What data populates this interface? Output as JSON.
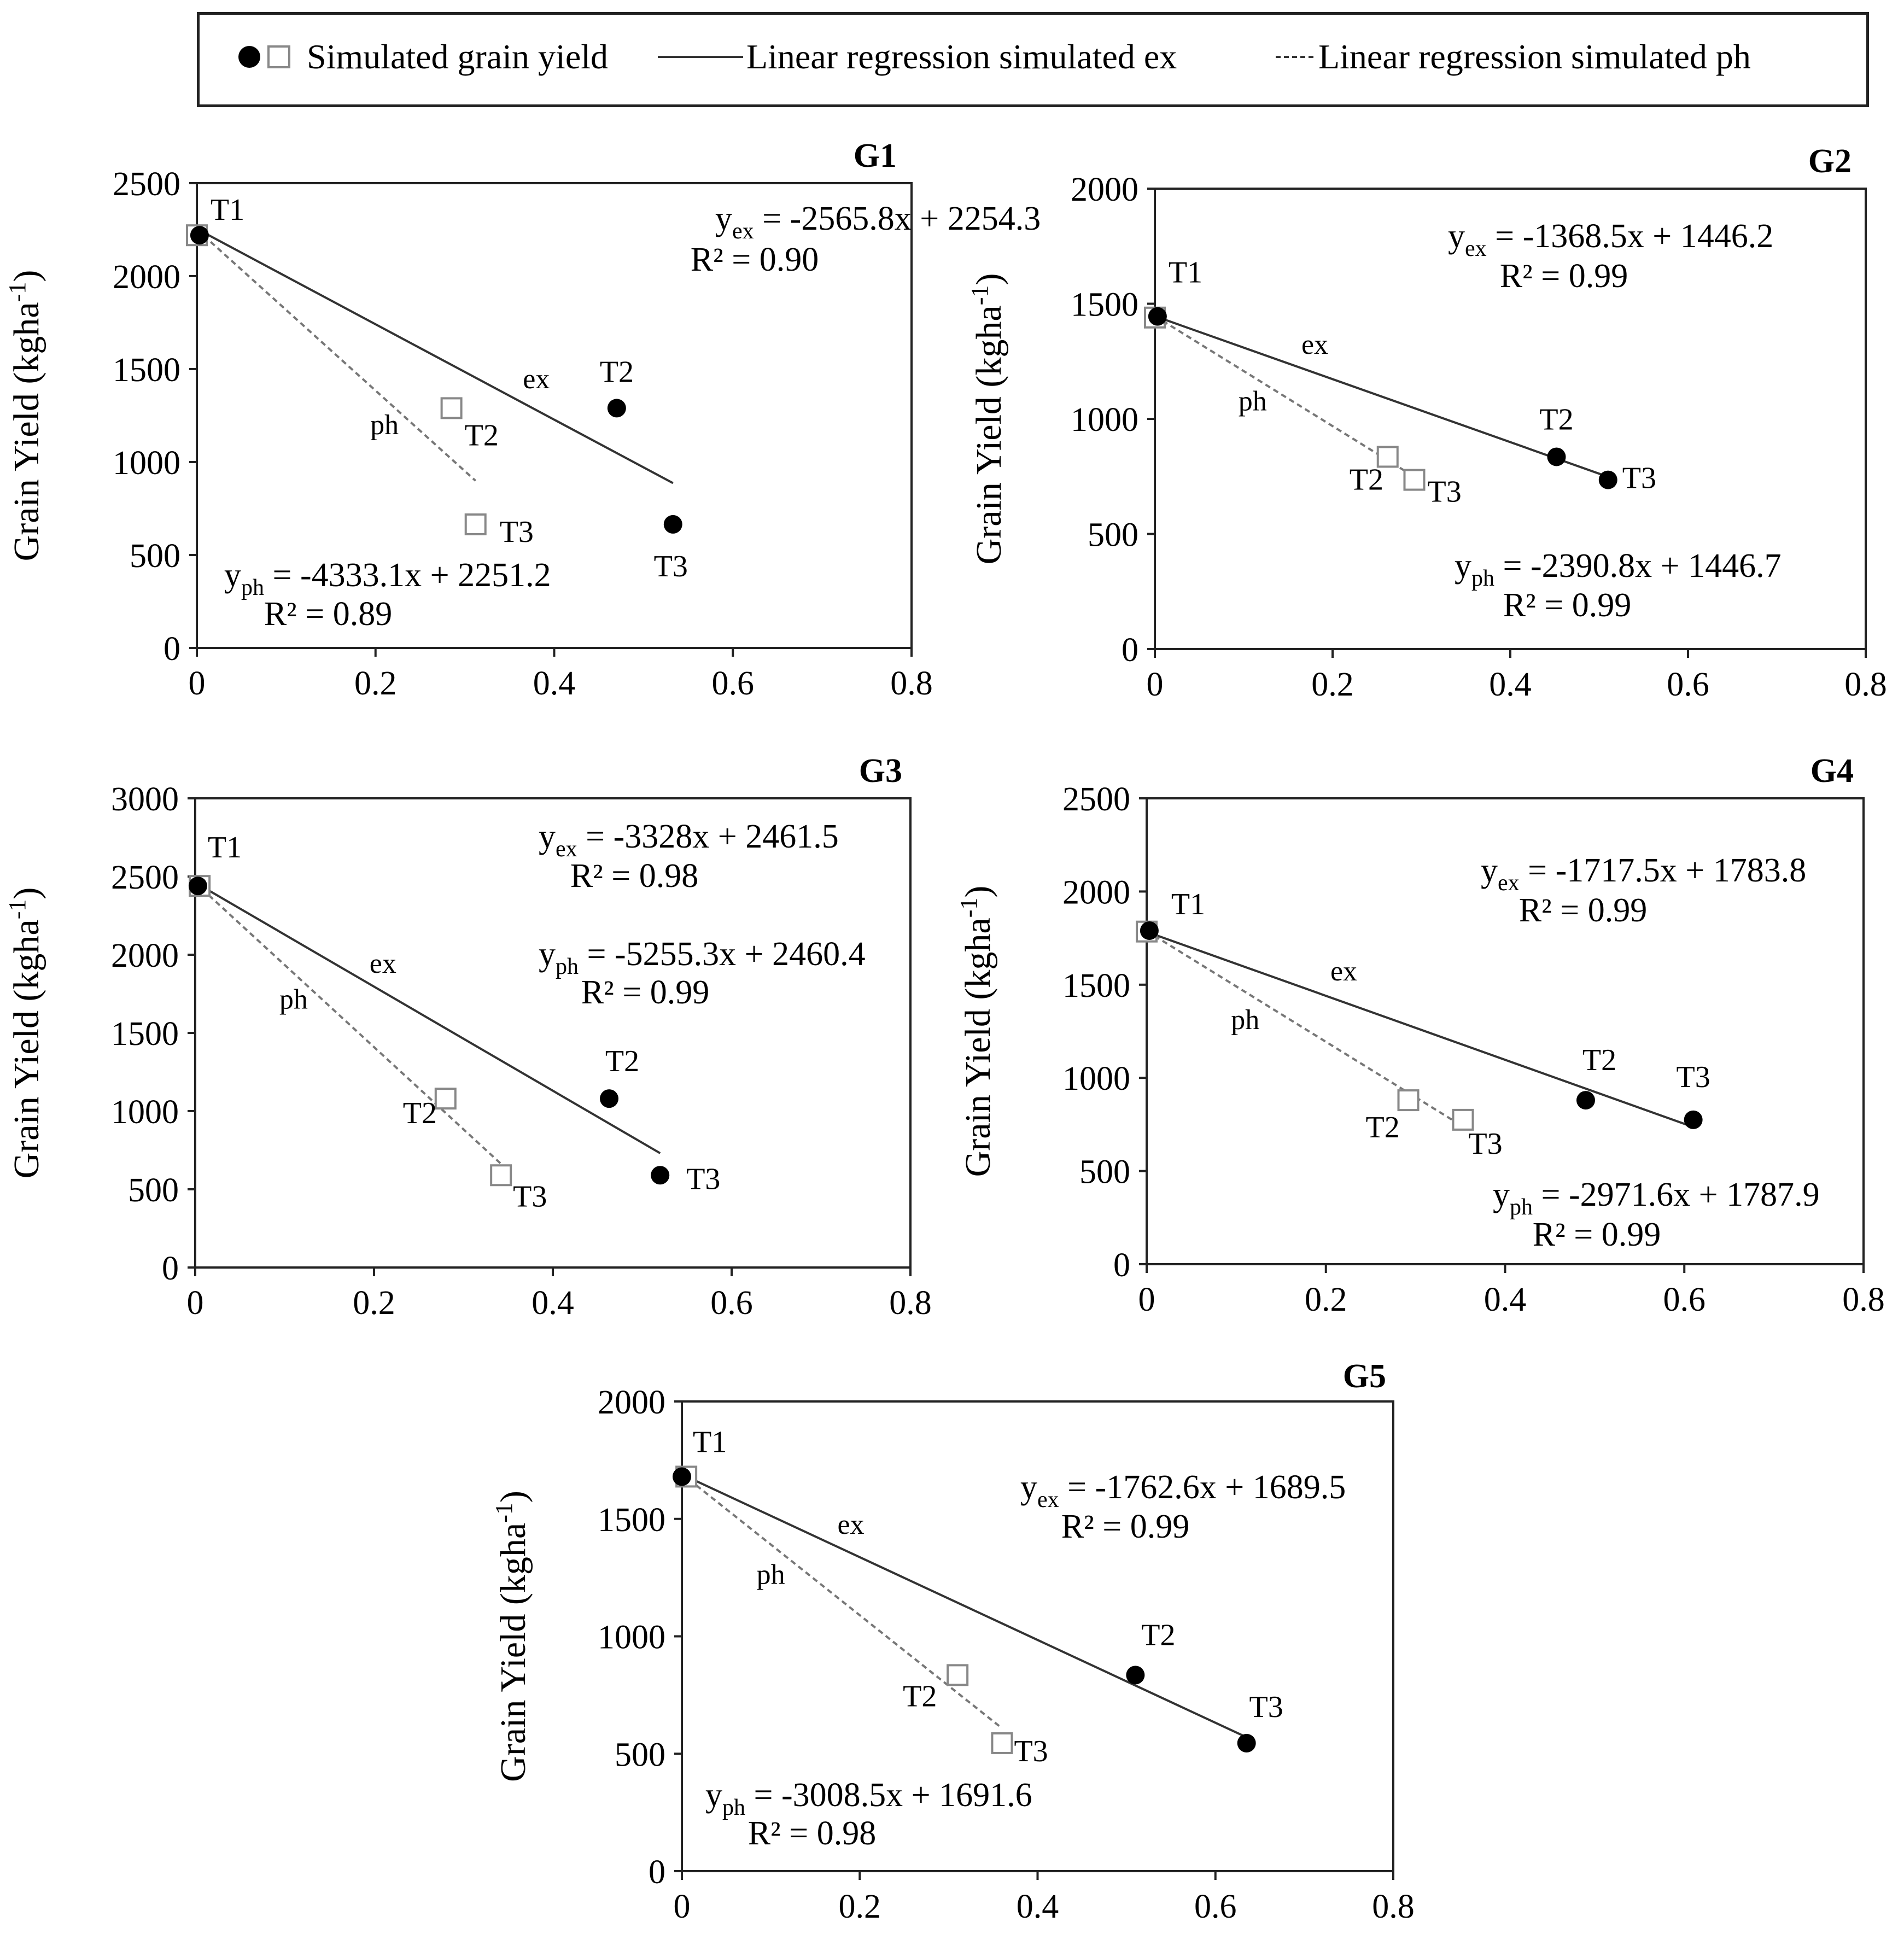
{
  "legend": {
    "points_label": "Simulated grain yield",
    "ex_label": "Linear regression simulated ex",
    "ph_label": "Linear regression simulated ph",
    "ex_line_style": "solid",
    "ph_line_style": "dashed"
  },
  "colors": {
    "ex_points": "#000000",
    "ph_points": "#ffffff",
    "ex_line": "#333333",
    "ph_line": "#777777",
    "frame": "#222222"
  },
  "chart_data": [
    {
      "type": "scatter",
      "title": "G1",
      "ylabel": "Grain Yield (kgha",
      "ylabel_sup": "-1",
      "ylabel_close": ")",
      "xlim": [
        0,
        0.8
      ],
      "ylim": [
        0,
        2500
      ],
      "xticks": [
        0,
        0.2,
        0.4,
        0.6,
        0.8
      ],
      "xtick_labels": [
        "0",
        "0.2",
        "0.4",
        "0.6",
        "0.8"
      ],
      "yticks": [
        0,
        500,
        1000,
        1500,
        2000,
        2500
      ],
      "ytick_labels": [
        "0",
        "500",
        "1000",
        "1500",
        "2000",
        "2500"
      ],
      "series": [
        {
          "name": "ex",
          "marker": "filled-circle",
          "points": [
            {
              "x": 0.003,
              "y": 2220,
              "label": "T1"
            },
            {
              "x": 0.47,
              "y": 1290,
              "label": "T2"
            },
            {
              "x": 0.533,
              "y": 665,
              "label": "T3"
            }
          ]
        },
        {
          "name": "ph",
          "marker": "open-square",
          "points": [
            {
              "x": 0.0,
              "y": 2220,
              "label": ""
            },
            {
              "x": 0.285,
              "y": 1290,
              "label": "T2"
            },
            {
              "x": 0.312,
              "y": 665,
              "label": "T3"
            }
          ]
        }
      ],
      "regressions": [
        {
          "name": "ex",
          "line_label": "ex",
          "slope": -2565.8,
          "intercept": 2254.3,
          "x_range": [
            0,
            0.533
          ],
          "eq_prefix": "y",
          "eq_sub": "ex",
          "eq_rest": " = -2565.8x + 2254.3",
          "r2": "R² = 0.90"
        },
        {
          "name": "ph",
          "line_label": "ph",
          "slope": -4333.1,
          "intercept": 2251.2,
          "x_range": [
            0,
            0.312
          ],
          "eq_prefix": "y",
          "eq_sub": "ph",
          "eq_rest": " = -4333.1x + 2251.2",
          "r2": "R² = 0.89"
        }
      ]
    },
    {
      "type": "scatter",
      "title": "G2",
      "ylabel": "Grain Yield (kgha",
      "ylabel_sup": "-1",
      "ylabel_close": ")",
      "xlim": [
        0,
        0.8
      ],
      "ylim": [
        0,
        2000
      ],
      "xticks": [
        0,
        0.2,
        0.4,
        0.6,
        0.8
      ],
      "xtick_labels": [
        "0",
        "0.2",
        "0.4",
        "0.6",
        "0.8"
      ],
      "yticks": [
        0,
        500,
        1000,
        1500,
        2000
      ],
      "ytick_labels": [
        "0",
        "500",
        "1000",
        "1500",
        "2000"
      ],
      "series": [
        {
          "name": "ex",
          "marker": "filled-circle",
          "points": [
            {
              "x": 0.003,
              "y": 1445,
              "label": "T1"
            },
            {
              "x": 0.452,
              "y": 835,
              "label": "T2"
            },
            {
              "x": 0.51,
              "y": 735,
              "label": "T3"
            }
          ]
        },
        {
          "name": "ph",
          "marker": "open-square",
          "points": [
            {
              "x": 0.0,
              "y": 1440,
              "label": ""
            },
            {
              "x": 0.262,
              "y": 835,
              "label": "T2"
            },
            {
              "x": 0.292,
              "y": 735,
              "label": "T3"
            }
          ]
        }
      ],
      "regressions": [
        {
          "name": "ex",
          "line_label": "ex",
          "slope": -1368.5,
          "intercept": 1446.2,
          "x_range": [
            0,
            0.51
          ],
          "eq_prefix": "y",
          "eq_sub": "ex",
          "eq_rest": " = -1368.5x + 1446.2",
          "r2": "R² = 0.99"
        },
        {
          "name": "ph",
          "line_label": "ph",
          "slope": -2390.8,
          "intercept": 1446.7,
          "x_range": [
            0,
            0.292
          ],
          "eq_prefix": "y",
          "eq_sub": "ph",
          "eq_rest": " = -2390.8x + 1446.7",
          "r2": "R² = 0.99"
        }
      ]
    },
    {
      "type": "scatter",
      "title": "G3",
      "ylabel": "Grain Yield (kgha",
      "ylabel_sup": "-1",
      "ylabel_close": ")",
      "xlim": [
        0,
        0.8
      ],
      "ylim": [
        0,
        3000
      ],
      "xticks": [
        0,
        0.2,
        0.4,
        0.6,
        0.8
      ],
      "xtick_labels": [
        "0",
        "0.2",
        "0.4",
        "0.6",
        "0.8"
      ],
      "yticks": [
        0,
        500,
        1000,
        1500,
        2000,
        2500,
        3000
      ],
      "ytick_labels": [
        "0",
        "500",
        "1000",
        "1500",
        "2000",
        "2500",
        "3000"
      ],
      "series": [
        {
          "name": "ex",
          "marker": "filled-circle",
          "points": [
            {
              "x": 0.003,
              "y": 2440,
              "label": "T1"
            },
            {
              "x": 0.463,
              "y": 1080,
              "label": "T2"
            },
            {
              "x": 0.52,
              "y": 590,
              "label": "T3"
            }
          ]
        },
        {
          "name": "ph",
          "marker": "open-square",
          "points": [
            {
              "x": 0.005,
              "y": 2440,
              "label": ""
            },
            {
              "x": 0.28,
              "y": 1080,
              "label": "T2"
            },
            {
              "x": 0.342,
              "y": 590,
              "label": "T3"
            }
          ]
        }
      ],
      "regressions": [
        {
          "name": "ex",
          "line_label": "ex",
          "slope": -3328,
          "intercept": 2461.5,
          "x_range": [
            0,
            0.52
          ],
          "eq_prefix": "y",
          "eq_sub": "ex",
          "eq_rest": " = -3328x + 2461.5",
          "r2": "R² = 0.98"
        },
        {
          "name": "ph",
          "line_label": "ph",
          "slope": -5255.3,
          "intercept": 2460.4,
          "x_range": [
            0,
            0.342
          ],
          "eq_prefix": "y",
          "eq_sub": "ph",
          "eq_rest": " = -5255.3x + 2460.4",
          "r2": "R² = 0.99"
        }
      ]
    },
    {
      "type": "scatter",
      "title": "G4",
      "ylabel": "Grain Yield (kgha",
      "ylabel_sup": "-1",
      "ylabel_close": ")",
      "xlim": [
        0,
        0.8
      ],
      "ylim": [
        0,
        2500
      ],
      "xticks": [
        0,
        0.2,
        0.4,
        0.6,
        0.8
      ],
      "xtick_labels": [
        "0",
        "0.2",
        "0.4",
        "0.6",
        "0.8"
      ],
      "yticks": [
        0,
        500,
        1000,
        1500,
        2000,
        2500
      ],
      "ytick_labels": [
        "0",
        "500",
        "1000",
        "1500",
        "2000",
        "2500"
      ],
      "series": [
        {
          "name": "ex",
          "marker": "filled-circle",
          "points": [
            {
              "x": 0.003,
              "y": 1790,
              "label": "T1"
            },
            {
              "x": 0.49,
              "y": 880,
              "label": "T2"
            },
            {
              "x": 0.61,
              "y": 775,
              "label": "T3"
            }
          ]
        },
        {
          "name": "ph",
          "marker": "open-square",
          "points": [
            {
              "x": 0.0,
              "y": 1785,
              "label": ""
            },
            {
              "x": 0.292,
              "y": 880,
              "label": "T2"
            },
            {
              "x": 0.353,
              "y": 775,
              "label": "T3"
            }
          ]
        }
      ],
      "regressions": [
        {
          "name": "ex",
          "line_label": "ex",
          "slope": -1717.5,
          "intercept": 1783.8,
          "x_range": [
            0,
            0.61
          ],
          "eq_prefix": "y",
          "eq_sub": "ex",
          "eq_rest": " = -1717.5x + 1783.8",
          "r2": "R² = 0.99"
        },
        {
          "name": "ph",
          "line_label": "ph",
          "slope": -2971.6,
          "intercept": 1787.9,
          "x_range": [
            0,
            0.353
          ],
          "eq_prefix": "y",
          "eq_sub": "ph",
          "eq_rest": " = -2971.6x + 1787.9",
          "r2": "R² = 0.99"
        }
      ]
    },
    {
      "type": "scatter",
      "title": "G5",
      "ylabel": "Grain Yield (kgha",
      "ylabel_sup": "-1",
      "ylabel_close": ")",
      "xlim": [
        0,
        0.8
      ],
      "ylim": [
        0,
        2000
      ],
      "xticks": [
        0,
        0.2,
        0.4,
        0.6,
        0.8
      ],
      "xtick_labels": [
        "0",
        "0.2",
        "0.4",
        "0.6",
        "0.8"
      ],
      "yticks": [
        0,
        500,
        1000,
        1500,
        2000
      ],
      "ytick_labels": [
        "0",
        "500",
        "1000",
        "1500",
        "2000"
      ],
      "series": [
        {
          "name": "ex",
          "marker": "filled-circle",
          "points": [
            {
              "x": 0.0,
              "y": 1680,
              "label": "T1"
            },
            {
              "x": 0.51,
              "y": 835,
              "label": "T2"
            },
            {
              "x": 0.635,
              "y": 545,
              "label": "T3"
            }
          ]
        },
        {
          "name": "ph",
          "marker": "open-square",
          "points": [
            {
              "x": 0.005,
              "y": 1680,
              "label": ""
            },
            {
              "x": 0.31,
              "y": 835,
              "label": "T2"
            },
            {
              "x": 0.36,
              "y": 545,
              "label": "T3"
            }
          ]
        }
      ],
      "regressions": [
        {
          "name": "ex",
          "line_label": "ex",
          "slope": -1762.6,
          "intercept": 1689.5,
          "x_range": [
            0,
            0.635
          ],
          "eq_prefix": "y",
          "eq_sub": "ex",
          "eq_rest": " = -1762.6x + 1689.5",
          "r2": "R² = 0.99"
        },
        {
          "name": "ph",
          "line_label": "ph",
          "slope": -3008.5,
          "intercept": 1691.6,
          "x_range": [
            0,
            0.36
          ],
          "eq_prefix": "y",
          "eq_sub": "ph",
          "eq_rest": " = -3008.5x + 1691.6",
          "r2": "R² = 0.98"
        }
      ]
    }
  ]
}
